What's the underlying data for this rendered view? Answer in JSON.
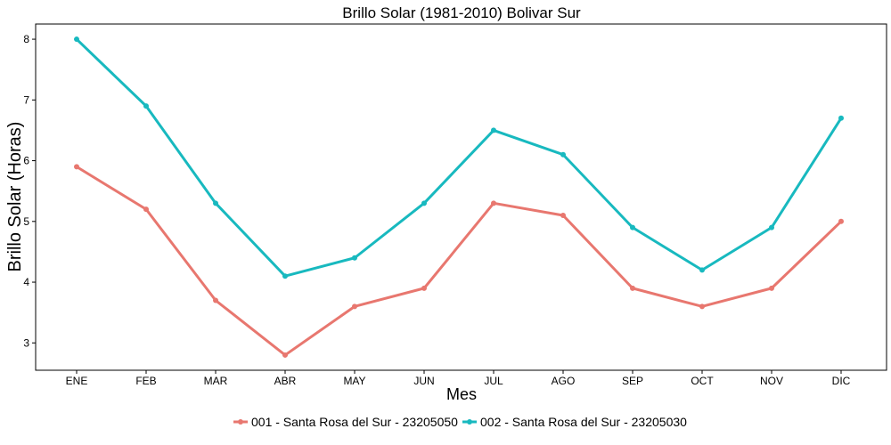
{
  "chart_data": {
    "type": "line",
    "title": "Brillo Solar (1981-2010)  Bolivar Sur",
    "xlabel": "Mes",
    "ylabel": "Brillo Solar (Horas)",
    "categories": [
      "ENE",
      "FEB",
      "MAR",
      "ABR",
      "MAY",
      "JUN",
      "JUL",
      "AGO",
      "SEP",
      "OCT",
      "NOV",
      "DIC"
    ],
    "ylim": [
      2.55,
      8.25
    ],
    "yticks": [
      3,
      4,
      5,
      6,
      7,
      8
    ],
    "grid": false,
    "legend_position": "bottom",
    "series": [
      {
        "name": "001 - Santa Rosa del Sur - 23205050",
        "color": "#e8776f",
        "values": [
          5.9,
          5.2,
          3.7,
          2.8,
          3.6,
          3.9,
          5.3,
          5.1,
          3.9,
          3.6,
          3.9,
          5.0
        ]
      },
      {
        "name": "002 - Santa Rosa del Sur - 23205030",
        "color": "#18b9bf",
        "values": [
          8.0,
          6.9,
          5.3,
          4.1,
          4.4,
          5.3,
          6.5,
          6.1,
          4.9,
          4.2,
          4.9,
          6.7
        ]
      }
    ]
  }
}
